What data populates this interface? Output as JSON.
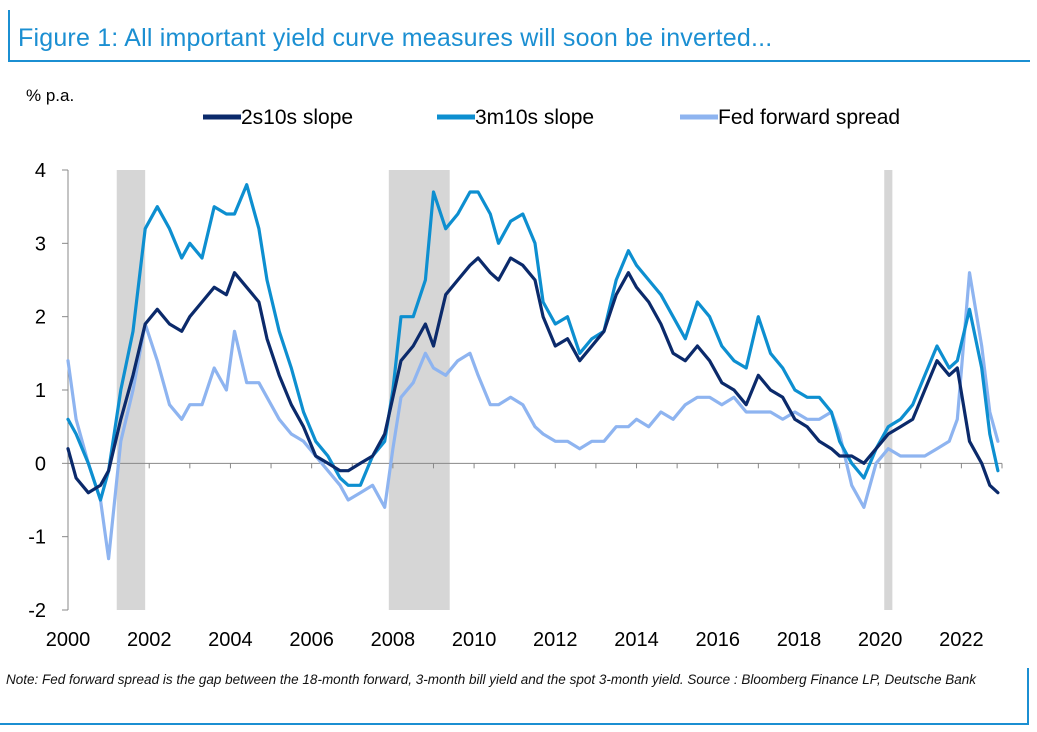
{
  "figure": {
    "title": "Figure 1: All important yield curve measures will soon be inverted...",
    "note": "Note: Fed forward spread is the gap between the 18-month forward, 3-month bill yield and the spot 3-month yield. Source : Bloomberg Finance LP, Deutsche Bank"
  },
  "chart_data": {
    "type": "line",
    "title": "",
    "xlabel": "",
    "ylabel": "% p.a.",
    "xlim": [
      2000,
      2023
    ],
    "ylim": [
      -2,
      4
    ],
    "x_ticks": [
      2000,
      2002,
      2004,
      2006,
      2008,
      2010,
      2012,
      2014,
      2016,
      2018,
      2020,
      2022
    ],
    "y_ticks": [
      -2,
      -1,
      0,
      1,
      2,
      3,
      4
    ],
    "grid": false,
    "legend_position": "top",
    "recession_shading": [
      [
        2001.2,
        2001.9
      ],
      [
        2007.9,
        2009.4
      ],
      [
        2020.1,
        2020.3
      ]
    ],
    "series": [
      {
        "name": "2s10s slope",
        "color": "#0b2a6b",
        "points": [
          [
            2000.0,
            0.2
          ],
          [
            2000.2,
            -0.2
          ],
          [
            2000.5,
            -0.4
          ],
          [
            2000.8,
            -0.3
          ],
          [
            2001.0,
            -0.1
          ],
          [
            2001.3,
            0.6
          ],
          [
            2001.6,
            1.2
          ],
          [
            2001.9,
            1.9
          ],
          [
            2002.2,
            2.1
          ],
          [
            2002.5,
            1.9
          ],
          [
            2002.8,
            1.8
          ],
          [
            2003.0,
            2.0
          ],
          [
            2003.3,
            2.2
          ],
          [
            2003.6,
            2.4
          ],
          [
            2003.9,
            2.3
          ],
          [
            2004.1,
            2.6
          ],
          [
            2004.4,
            2.4
          ],
          [
            2004.7,
            2.2
          ],
          [
            2004.9,
            1.7
          ],
          [
            2005.2,
            1.2
          ],
          [
            2005.5,
            0.8
          ],
          [
            2005.8,
            0.5
          ],
          [
            2006.1,
            0.1
          ],
          [
            2006.4,
            0.0
          ],
          [
            2006.7,
            -0.1
          ],
          [
            2006.9,
            -0.1
          ],
          [
            2007.2,
            0.0
          ],
          [
            2007.5,
            0.1
          ],
          [
            2007.8,
            0.4
          ],
          [
            2008.0,
            0.9
          ],
          [
            2008.2,
            1.4
          ],
          [
            2008.5,
            1.6
          ],
          [
            2008.8,
            1.9
          ],
          [
            2009.0,
            1.6
          ],
          [
            2009.3,
            2.3
          ],
          [
            2009.6,
            2.5
          ],
          [
            2009.9,
            2.7
          ],
          [
            2010.1,
            2.8
          ],
          [
            2010.4,
            2.6
          ],
          [
            2010.6,
            2.5
          ],
          [
            2010.9,
            2.8
          ],
          [
            2011.2,
            2.7
          ],
          [
            2011.5,
            2.5
          ],
          [
            2011.7,
            2.0
          ],
          [
            2012.0,
            1.6
          ],
          [
            2012.3,
            1.7
          ],
          [
            2012.6,
            1.4
          ],
          [
            2012.9,
            1.6
          ],
          [
            2013.2,
            1.8
          ],
          [
            2013.5,
            2.3
          ],
          [
            2013.8,
            2.6
          ],
          [
            2014.0,
            2.4
          ],
          [
            2014.3,
            2.2
          ],
          [
            2014.6,
            1.9
          ],
          [
            2014.9,
            1.5
          ],
          [
            2015.2,
            1.4
          ],
          [
            2015.5,
            1.6
          ],
          [
            2015.8,
            1.4
          ],
          [
            2016.1,
            1.1
          ],
          [
            2016.4,
            1.0
          ],
          [
            2016.7,
            0.8
          ],
          [
            2017.0,
            1.2
          ],
          [
            2017.3,
            1.0
          ],
          [
            2017.6,
            0.9
          ],
          [
            2017.9,
            0.6
          ],
          [
            2018.2,
            0.5
          ],
          [
            2018.5,
            0.3
          ],
          [
            2018.8,
            0.2
          ],
          [
            2019.0,
            0.1
          ],
          [
            2019.3,
            0.1
          ],
          [
            2019.6,
            0.0
          ],
          [
            2019.9,
            0.2
          ],
          [
            2020.2,
            0.4
          ],
          [
            2020.5,
            0.5
          ],
          [
            2020.8,
            0.6
          ],
          [
            2021.1,
            1.0
          ],
          [
            2021.4,
            1.4
          ],
          [
            2021.7,
            1.2
          ],
          [
            2021.9,
            1.3
          ],
          [
            2022.2,
            0.3
          ],
          [
            2022.5,
            0.0
          ],
          [
            2022.7,
            -0.3
          ],
          [
            2022.9,
            -0.4
          ]
        ]
      },
      {
        "name": "3m10s slope",
        "color": "#0d8fd0",
        "points": [
          [
            2000.0,
            0.6
          ],
          [
            2000.2,
            0.4
          ],
          [
            2000.5,
            0.0
          ],
          [
            2000.8,
            -0.5
          ],
          [
            2001.0,
            -0.1
          ],
          [
            2001.3,
            1.0
          ],
          [
            2001.6,
            1.8
          ],
          [
            2001.9,
            3.2
          ],
          [
            2002.2,
            3.5
          ],
          [
            2002.5,
            3.2
          ],
          [
            2002.8,
            2.8
          ],
          [
            2003.0,
            3.0
          ],
          [
            2003.3,
            2.8
          ],
          [
            2003.6,
            3.5
          ],
          [
            2003.9,
            3.4
          ],
          [
            2004.1,
            3.4
          ],
          [
            2004.4,
            3.8
          ],
          [
            2004.7,
            3.2
          ],
          [
            2004.9,
            2.5
          ],
          [
            2005.2,
            1.8
          ],
          [
            2005.5,
            1.3
          ],
          [
            2005.8,
            0.7
          ],
          [
            2006.1,
            0.3
          ],
          [
            2006.4,
            0.1
          ],
          [
            2006.7,
            -0.2
          ],
          [
            2006.9,
            -0.3
          ],
          [
            2007.2,
            -0.3
          ],
          [
            2007.5,
            0.1
          ],
          [
            2007.8,
            0.3
          ],
          [
            2008.0,
            1.0
          ],
          [
            2008.2,
            2.0
          ],
          [
            2008.5,
            2.0
          ],
          [
            2008.8,
            2.5
          ],
          [
            2009.0,
            3.7
          ],
          [
            2009.3,
            3.2
          ],
          [
            2009.6,
            3.4
          ],
          [
            2009.9,
            3.7
          ],
          [
            2010.1,
            3.7
          ],
          [
            2010.4,
            3.4
          ],
          [
            2010.6,
            3.0
          ],
          [
            2010.9,
            3.3
          ],
          [
            2011.2,
            3.4
          ],
          [
            2011.5,
            3.0
          ],
          [
            2011.7,
            2.2
          ],
          [
            2012.0,
            1.9
          ],
          [
            2012.3,
            2.0
          ],
          [
            2012.6,
            1.5
          ],
          [
            2012.9,
            1.7
          ],
          [
            2013.2,
            1.8
          ],
          [
            2013.5,
            2.5
          ],
          [
            2013.8,
            2.9
          ],
          [
            2014.0,
            2.7
          ],
          [
            2014.3,
            2.5
          ],
          [
            2014.6,
            2.3
          ],
          [
            2014.9,
            2.0
          ],
          [
            2015.2,
            1.7
          ],
          [
            2015.5,
            2.2
          ],
          [
            2015.8,
            2.0
          ],
          [
            2016.1,
            1.6
          ],
          [
            2016.4,
            1.4
          ],
          [
            2016.7,
            1.3
          ],
          [
            2017.0,
            2.0
          ],
          [
            2017.3,
            1.5
          ],
          [
            2017.6,
            1.3
          ],
          [
            2017.9,
            1.0
          ],
          [
            2018.2,
            0.9
          ],
          [
            2018.5,
            0.9
          ],
          [
            2018.8,
            0.7
          ],
          [
            2019.0,
            0.3
          ],
          [
            2019.3,
            0.0
          ],
          [
            2019.6,
            -0.2
          ],
          [
            2019.9,
            0.2
          ],
          [
            2020.2,
            0.5
          ],
          [
            2020.5,
            0.6
          ],
          [
            2020.8,
            0.8
          ],
          [
            2021.1,
            1.2
          ],
          [
            2021.4,
            1.6
          ],
          [
            2021.7,
            1.3
          ],
          [
            2021.9,
            1.4
          ],
          [
            2022.2,
            2.1
          ],
          [
            2022.5,
            1.3
          ],
          [
            2022.7,
            0.4
          ],
          [
            2022.9,
            -0.1
          ]
        ]
      },
      {
        "name": "Fed forward spread",
        "color": "#8eb4f0",
        "points": [
          [
            2000.0,
            1.4
          ],
          [
            2000.2,
            0.6
          ],
          [
            2000.5,
            0.0
          ],
          [
            2000.8,
            -0.5
          ],
          [
            2001.0,
            -1.3
          ],
          [
            2001.3,
            0.3
          ],
          [
            2001.6,
            1.0
          ],
          [
            2001.9,
            1.9
          ],
          [
            2002.2,
            1.4
          ],
          [
            2002.5,
            0.8
          ],
          [
            2002.8,
            0.6
          ],
          [
            2003.0,
            0.8
          ],
          [
            2003.3,
            0.8
          ],
          [
            2003.6,
            1.3
          ],
          [
            2003.9,
            1.0
          ],
          [
            2004.1,
            1.8
          ],
          [
            2004.4,
            1.1
          ],
          [
            2004.7,
            1.1
          ],
          [
            2004.9,
            0.9
          ],
          [
            2005.2,
            0.6
          ],
          [
            2005.5,
            0.4
          ],
          [
            2005.8,
            0.3
          ],
          [
            2006.1,
            0.1
          ],
          [
            2006.4,
            -0.1
          ],
          [
            2006.7,
            -0.3
          ],
          [
            2006.9,
            -0.5
          ],
          [
            2007.2,
            -0.4
          ],
          [
            2007.5,
            -0.3
          ],
          [
            2007.8,
            -0.6
          ],
          [
            2008.0,
            0.2
          ],
          [
            2008.2,
            0.9
          ],
          [
            2008.5,
            1.1
          ],
          [
            2008.8,
            1.5
          ],
          [
            2009.0,
            1.3
          ],
          [
            2009.3,
            1.2
          ],
          [
            2009.6,
            1.4
          ],
          [
            2009.9,
            1.5
          ],
          [
            2010.1,
            1.2
          ],
          [
            2010.4,
            0.8
          ],
          [
            2010.6,
            0.8
          ],
          [
            2010.9,
            0.9
          ],
          [
            2011.2,
            0.8
          ],
          [
            2011.5,
            0.5
          ],
          [
            2011.7,
            0.4
          ],
          [
            2012.0,
            0.3
          ],
          [
            2012.3,
            0.3
          ],
          [
            2012.6,
            0.2
          ],
          [
            2012.9,
            0.3
          ],
          [
            2013.2,
            0.3
          ],
          [
            2013.5,
            0.5
          ],
          [
            2013.8,
            0.5
          ],
          [
            2014.0,
            0.6
          ],
          [
            2014.3,
            0.5
          ],
          [
            2014.6,
            0.7
          ],
          [
            2014.9,
            0.6
          ],
          [
            2015.2,
            0.8
          ],
          [
            2015.5,
            0.9
          ],
          [
            2015.8,
            0.9
          ],
          [
            2016.1,
            0.8
          ],
          [
            2016.4,
            0.9
          ],
          [
            2016.7,
            0.7
          ],
          [
            2017.0,
            0.7
          ],
          [
            2017.3,
            0.7
          ],
          [
            2017.6,
            0.6
          ],
          [
            2017.9,
            0.7
          ],
          [
            2018.2,
            0.6
          ],
          [
            2018.5,
            0.6
          ],
          [
            2018.8,
            0.7
          ],
          [
            2019.0,
            0.4
          ],
          [
            2019.3,
            -0.3
          ],
          [
            2019.6,
            -0.6
          ],
          [
            2019.9,
            0.0
          ],
          [
            2020.2,
            0.2
          ],
          [
            2020.5,
            0.1
          ],
          [
            2020.8,
            0.1
          ],
          [
            2021.1,
            0.1
          ],
          [
            2021.4,
            0.2
          ],
          [
            2021.7,
            0.3
          ],
          [
            2021.9,
            0.6
          ],
          [
            2022.2,
            2.6
          ],
          [
            2022.5,
            1.6
          ],
          [
            2022.7,
            0.7
          ],
          [
            2022.9,
            0.3
          ]
        ]
      }
    ]
  }
}
